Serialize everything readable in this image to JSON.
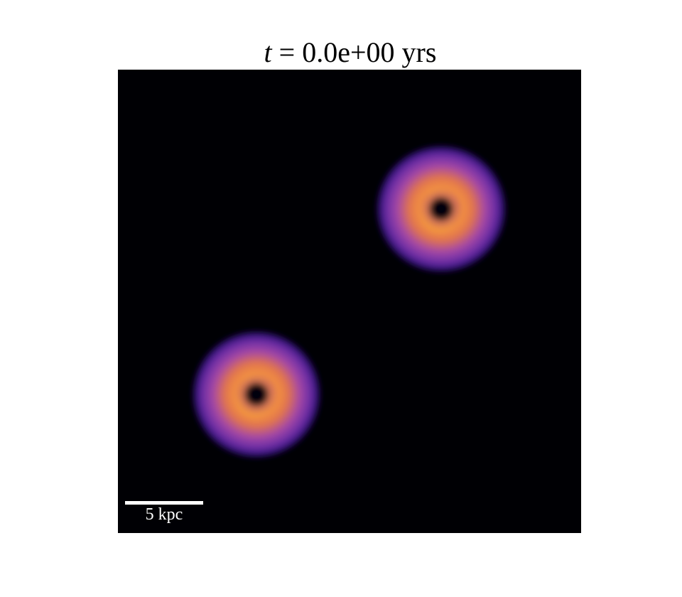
{
  "figure": {
    "title_var": "t",
    "title_rest": " = 0.0e+00 yrs"
  },
  "image": {
    "description_colormap": "plasma",
    "colors": {
      "background": "#000004",
      "outer_halo": "#2a0f6e",
      "mid": "#8d3fb8",
      "ring": "#f29040",
      "core": "#05020e"
    },
    "objects": [
      {
        "name": "disk-galaxy-upper-right"
      },
      {
        "name": "disk-galaxy-lower-left"
      }
    ]
  },
  "scale_bar": {
    "label": "5 kpc"
  }
}
